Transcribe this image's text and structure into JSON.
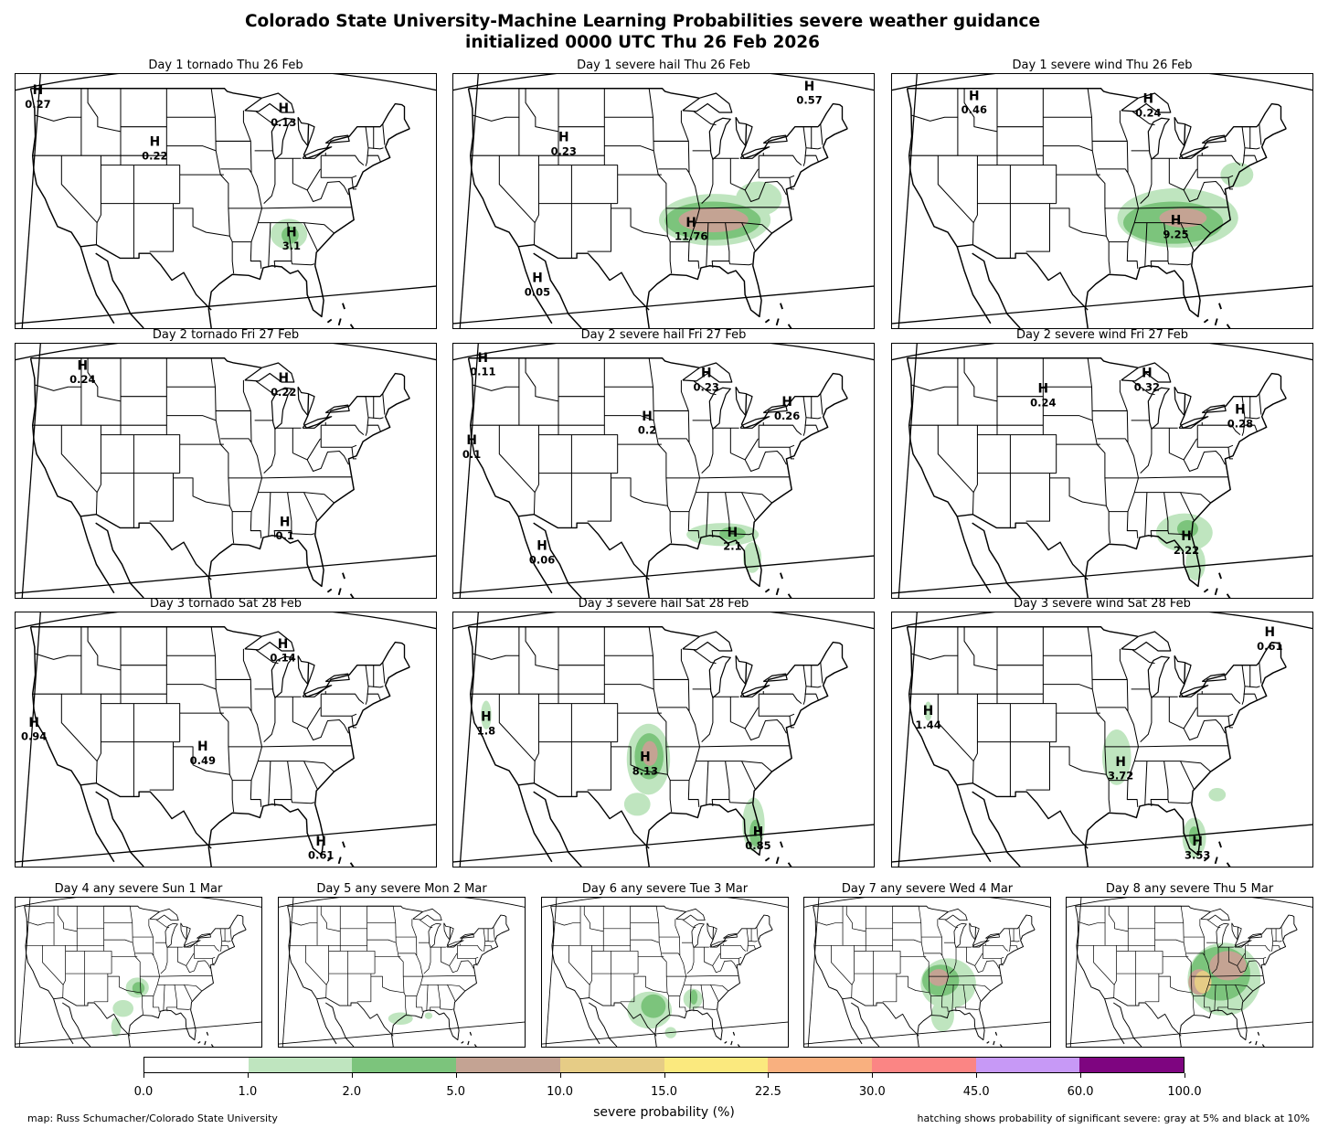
{
  "title": {
    "line1": "Colorado State University-Machine Learning Probabilities severe weather guidance",
    "line2": "initialized 0000 UTC Thu 26 Feb 2026"
  },
  "panels": [
    {
      "id": "d1-tornado",
      "title": "Day 1 tornado  Thu 26 Feb",
      "maxima": [
        {
          "value": "0.27",
          "lon": -123.6,
          "lat": 48.4
        },
        {
          "value": "0.13",
          "lon": -86.2,
          "lat": 46.5
        },
        {
          "value": "0.22",
          "lon": -105.8,
          "lat": 43.0
        },
        {
          "value": "3.1",
          "lon": -85.0,
          "lat": 33.6
        }
      ],
      "areas": [
        {
          "level": 1,
          "lon": -85.4,
          "lat": 33.8,
          "rx": 2.8,
          "ry": 1.6
        },
        {
          "level": 2,
          "lon": -85.2,
          "lat": 33.7,
          "rx": 1.3,
          "ry": 0.9
        }
      ]
    },
    {
      "id": "d1-hail",
      "title": "Day 1 severe hail  Thu 26 Feb",
      "maxima": [
        {
          "value": "0.57",
          "lon": -72.8,
          "lat": 48.8
        },
        {
          "value": "0.23",
          "lon": -110.2,
          "lat": 43.5
        },
        {
          "value": "11.76",
          "lon": -90.8,
          "lat": 34.6
        },
        {
          "value": "0.05",
          "lon": -114.2,
          "lat": 28.8
        }
      ],
      "areas": [
        {
          "level": 1,
          "lon": -87.2,
          "lat": 35.3,
          "rx": 8.5,
          "ry": 2.7
        },
        {
          "level": 1,
          "lon": -80.5,
          "lat": 37.5,
          "rx": 3.5,
          "ry": 1.8
        },
        {
          "level": 2,
          "lon": -87.5,
          "lat": 35.2,
          "rx": 7.3,
          "ry": 2.0
        },
        {
          "level": 3,
          "lon": -87.4,
          "lat": 35.3,
          "rx": 5.3,
          "ry": 1.3
        }
      ]
    },
    {
      "id": "d1-wind",
      "title": "Day 1 severe wind  Thu 26 Feb",
      "maxima": [
        {
          "value": "0.46",
          "lon": -114.5,
          "lat": 47.8
        },
        {
          "value": "0.24",
          "lon": -88.0,
          "lat": 47.5
        },
        {
          "value": "9.25",
          "lon": -83.8,
          "lat": 34.8
        }
      ],
      "areas": [
        {
          "level": 1,
          "lon": -83.5,
          "lat": 35.5,
          "rx": 9.2,
          "ry": 3.1
        },
        {
          "level": 1,
          "lon": -74.5,
          "lat": 40.0,
          "rx": 2.5,
          "ry": 1.3
        },
        {
          "level": 2,
          "lon": -84.2,
          "lat": 35.0,
          "rx": 7.6,
          "ry": 2.2
        },
        {
          "level": 3,
          "lon": -82.7,
          "lat": 35.5,
          "rx": 3.6,
          "ry": 1.0
        }
      ]
    },
    {
      "id": "d2-tornado",
      "title": "Day 2 tornado  Fri 27 Feb",
      "maxima": [
        {
          "value": "0.24",
          "lon": -116.8,
          "lat": 47.8
        },
        {
          "value": "0.22",
          "lon": -86.2,
          "lat": 46.5
        },
        {
          "value": "0.1",
          "lon": -86.0,
          "lat": 31.5
        }
      ],
      "areas": []
    },
    {
      "id": "d2-hail",
      "title": "Day 2 severe hail  Fri 27 Feb",
      "maxima": [
        {
          "value": "0.11",
          "lon": -122.5,
          "lat": 48.6
        },
        {
          "value": "0.23",
          "lon": -88.5,
          "lat": 47.0
        },
        {
          "value": "0.2",
          "lon": -97.5,
          "lat": 42.5
        },
        {
          "value": "0.26",
          "lon": -76.2,
          "lat": 44.0
        },
        {
          "value": "0.1",
          "lon": -124.2,
          "lat": 40.0
        },
        {
          "value": "2.1",
          "lon": -84.5,
          "lat": 30.4
        },
        {
          "value": "0.06",
          "lon": -113.5,
          "lat": 29.0
        }
      ],
      "areas": [
        {
          "level": 1,
          "lon": -86.0,
          "lat": 30.6,
          "rx": 5.5,
          "ry": 1.2
        },
        {
          "level": 1,
          "lon": -81.5,
          "lat": 28.2,
          "rx": 1.4,
          "ry": 1.6
        },
        {
          "level": 2,
          "lon": -84.5,
          "lat": 30.7,
          "rx": 2.0,
          "ry": 0.7
        }
      ]
    },
    {
      "id": "d2-wind",
      "title": "Day 2 severe wind  Fri 27 Feb",
      "maxima": [
        {
          "value": "0.24",
          "lon": -104.0,
          "lat": 45.4
        },
        {
          "value": "0.32",
          "lon": -88.2,
          "lat": 47.0
        },
        {
          "value": "0.28",
          "lon": -74.0,
          "lat": 43.2
        },
        {
          "value": "2.22",
          "lon": -82.2,
          "lat": 30.0
        }
      ],
      "areas": [
        {
          "level": 1,
          "lon": -82.5,
          "lat": 30.8,
          "rx": 4.3,
          "ry": 2.0
        },
        {
          "level": 1,
          "lon": -80.8,
          "lat": 27.6,
          "rx": 1.5,
          "ry": 1.8
        },
        {
          "level": 2,
          "lon": -82.0,
          "lat": 31.2,
          "rx": 1.6,
          "ry": 0.9
        }
      ]
    },
    {
      "id": "d3-tornado",
      "title": "Day 3 tornado  Sat 28 Feb",
      "maxima": [
        {
          "value": "0.14",
          "lon": -86.3,
          "lat": 46.8
        },
        {
          "value": "0.94",
          "lon": -124.2,
          "lat": 38.6
        },
        {
          "value": "0.49",
          "lon": -98.5,
          "lat": 36.1
        },
        {
          "value": "0.61",
          "lon": -80.5,
          "lat": 26.2
        }
      ],
      "areas": []
    },
    {
      "id": "d3-hail",
      "title": "Day 3 severe hail  Sat 28 Feb",
      "maxima": [
        {
          "value": "1.8",
          "lon": -122.0,
          "lat": 39.2
        },
        {
          "value": "8.13",
          "lon": -97.8,
          "lat": 35.0
        },
        {
          "value": "0.85",
          "lon": -80.6,
          "lat": 27.2
        }
      ],
      "areas": [
        {
          "level": 1,
          "lon": -97.3,
          "lat": 35.2,
          "rx": 3.3,
          "ry": 3.7
        },
        {
          "level": 1,
          "lon": -99.0,
          "lat": 30.5,
          "rx": 2.0,
          "ry": 1.2
        },
        {
          "level": 1,
          "lon": -122.0,
          "lat": 39.8,
          "rx": 0.8,
          "ry": 1.5
        },
        {
          "level": 1,
          "lon": -81.3,
          "lat": 28.4,
          "rx": 1.7,
          "ry": 2.8
        },
        {
          "level": 2,
          "lon": -97.2,
          "lat": 35.5,
          "rx": 2.2,
          "ry": 2.4
        },
        {
          "level": 2,
          "lon": -81.0,
          "lat": 27.5,
          "rx": 0.9,
          "ry": 1.4
        },
        {
          "level": 3,
          "lon": -97.1,
          "lat": 35.8,
          "rx": 1.2,
          "ry": 1.3
        }
      ]
    },
    {
      "id": "d3-wind",
      "title": "Day 3 severe wind  Sat 28 Feb",
      "maxima": [
        {
          "value": "0.61",
          "lon": -69.5,
          "lat": 48.0
        },
        {
          "value": "1.44",
          "lon": -121.5,
          "lat": 39.8
        },
        {
          "value": "3.72",
          "lon": -92.2,
          "lat": 34.5
        },
        {
          "value": "3.53",
          "lon": -80.5,
          "lat": 26.2
        }
      ],
      "areas": [
        {
          "level": 1,
          "lon": -92.8,
          "lat": 35.4,
          "rx": 2.2,
          "ry": 2.9
        },
        {
          "level": 1,
          "lon": -121.5,
          "lat": 40.2,
          "rx": 0.6,
          "ry": 1.0
        },
        {
          "level": 1,
          "lon": -81.0,
          "lat": 27.0,
          "rx": 1.8,
          "ry": 2.1
        },
        {
          "level": 1,
          "lon": -77.5,
          "lat": 31.5,
          "rx": 1.3,
          "ry": 0.7
        },
        {
          "level": 2,
          "lon": -81.0,
          "lat": 27.2,
          "rx": 0.8,
          "ry": 1.0
        }
      ]
    },
    {
      "id": "d4-any",
      "title": "Day 4 any severe  Sun 1 Mar",
      "maxima": [],
      "areas": [
        {
          "level": 1,
          "lon": -95.3,
          "lat": 34.5,
          "rx": 3.0,
          "ry": 1.8
        },
        {
          "level": 1,
          "lon": -99.0,
          "lat": 30.8,
          "rx": 2.7,
          "ry": 1.5
        },
        {
          "level": 1,
          "lon": -100.8,
          "lat": 27.5,
          "rx": 1.3,
          "ry": 1.7
        },
        {
          "level": 2,
          "lon": -95.0,
          "lat": 34.4,
          "rx": 1.6,
          "ry": 1.1
        }
      ]
    },
    {
      "id": "d5-any",
      "title": "Day 5 any severe  Mon 2 Mar",
      "maxima": [],
      "areas": [
        {
          "level": 1,
          "lon": -95.3,
          "lat": 29.0,
          "rx": 3.2,
          "ry": 1.1
        },
        {
          "level": 1,
          "lon": -88.0,
          "lat": 29.5,
          "rx": 1.0,
          "ry": 0.6
        }
      ]
    },
    {
      "id": "d6-any",
      "title": "Day 6 any severe  Tue 3 Mar",
      "maxima": [],
      "areas": [
        {
          "level": 1,
          "lon": -99.0,
          "lat": 30.5,
          "rx": 5.8,
          "ry": 3.3
        },
        {
          "level": 1,
          "lon": -87.7,
          "lat": 32.5,
          "rx": 2.5,
          "ry": 1.8
        },
        {
          "level": 1,
          "lon": -93.5,
          "lat": 26.5,
          "rx": 1.5,
          "ry": 1.0
        },
        {
          "level": 2,
          "lon": -98.0,
          "lat": 31.2,
          "rx": 3.2,
          "ry": 2.1
        },
        {
          "level": 2,
          "lon": -87.5,
          "lat": 32.8,
          "rx": 1.0,
          "ry": 1.3
        }
      ]
    },
    {
      "id": "d7-any",
      "title": "Day 7 any severe  Wed 4 Mar",
      "maxima": [],
      "areas": [
        {
          "level": 1,
          "lon": -89.5,
          "lat": 35.2,
          "rx": 7.2,
          "ry": 4.5
        },
        {
          "level": 1,
          "lon": -91.0,
          "lat": 29.5,
          "rx": 3.0,
          "ry": 2.8
        },
        {
          "level": 2,
          "lon": -91.5,
          "lat": 35.8,
          "rx": 4.8,
          "ry": 2.8
        },
        {
          "level": 3,
          "lon": -92.0,
          "lat": 36.3,
          "rx": 2.6,
          "ry": 1.5
        }
      ]
    },
    {
      "id": "d8-any",
      "title": "Day 8 any severe  Thu 5 Mar",
      "maxima": [],
      "areas": [
        {
          "level": 1,
          "lon": -86.0,
          "lat": 36.0,
          "rx": 9.5,
          "ry": 6.5
        },
        {
          "level": 2,
          "lon": -87.0,
          "lat": 37.0,
          "rx": 7.8,
          "ry": 4.8
        },
        {
          "level": 3,
          "lon": -85.0,
          "lat": 38.4,
          "rx": 4.8,
          "ry": 2.6
        },
        {
          "level": 3,
          "lon": -92.5,
          "lat": 35.5,
          "rx": 2.8,
          "ry": 2.3
        },
        {
          "level": 4,
          "lon": -91.5,
          "lat": 35.5,
          "rx": 2.2,
          "ry": 2.0
        }
      ]
    }
  ],
  "colorbar": {
    "label": "severe probability (%)",
    "ticks": [
      "0.0",
      "1.0",
      "2.0",
      "5.0",
      "10.0",
      "15.0",
      "22.5",
      "30.0",
      "45.0",
      "60.0",
      "100.0"
    ],
    "colors": [
      "#ffffff",
      "#bfe5bf",
      "#7cc47c",
      "#c4a393",
      "#e6cc86",
      "#fbe97e",
      "#f9b07f",
      "#fb8584",
      "#c799f6",
      "#7e0580"
    ]
  },
  "footer": {
    "credit": "map: Russ Schumacher/Colorado State University",
    "hatching": "hatching shows probability of significant severe: gray at 5% and black at 10%"
  }
}
